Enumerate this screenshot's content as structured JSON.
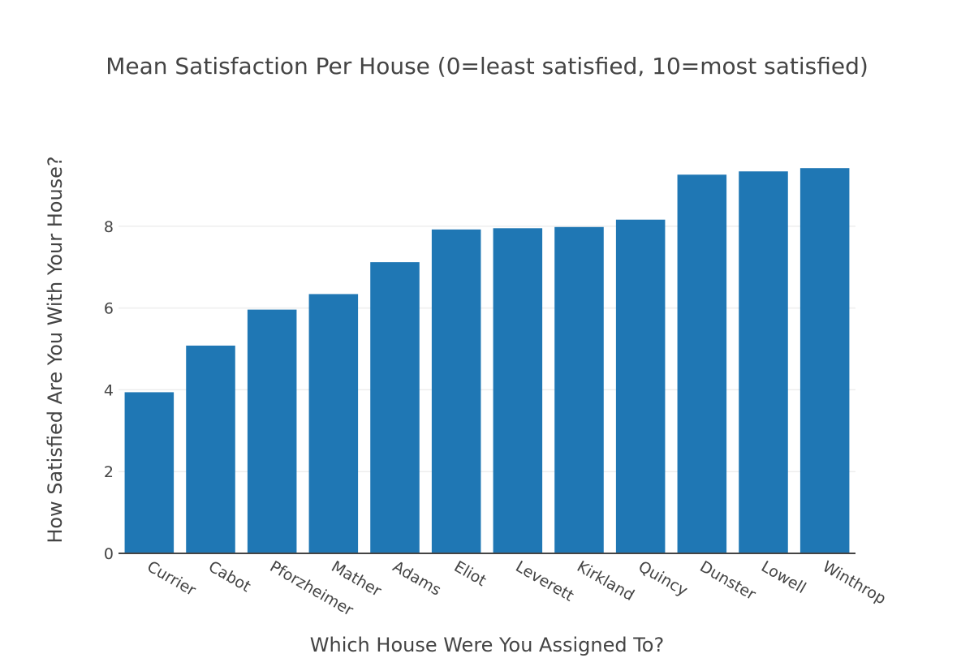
{
  "chart_data": {
    "type": "bar",
    "title": "Mean Satisfaction Per House (0=least satisfied, 10=most satisfied)",
    "xlabel": "Which House Were You Assigned To?",
    "ylabel": "How Satisfied Are You With Your House?",
    "categories": [
      "Currier",
      "Cabot",
      "Pforzheimer",
      "Mather",
      "Adams",
      "Eliot",
      "Leverett",
      "Kirkland",
      "Quincy",
      "Dunster",
      "Lowell",
      "Winthrop"
    ],
    "values": [
      3.94,
      5.08,
      5.96,
      6.34,
      7.12,
      7.92,
      7.95,
      7.98,
      8.16,
      9.26,
      9.34,
      9.42
    ],
    "ylim": [
      0,
      9.92
    ],
    "yticks": [
      0,
      2,
      4,
      6,
      8
    ],
    "grid": true,
    "legend": "none",
    "bar_color": "#1f77b4"
  }
}
